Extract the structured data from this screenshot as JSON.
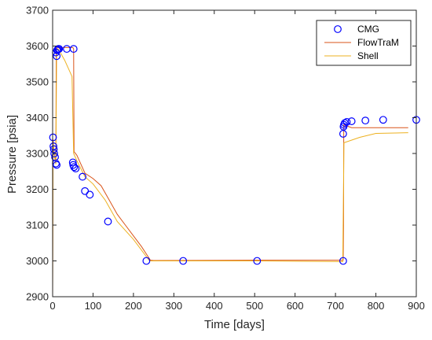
{
  "chart_data": {
    "type": "line",
    "xlabel": "Time [days]",
    "ylabel": "Pressure [psia]",
    "xlim": [
      0,
      900
    ],
    "ylim": [
      2900,
      3700
    ],
    "xticks": [
      0,
      100,
      200,
      300,
      400,
      500,
      600,
      700,
      800,
      900
    ],
    "yticks": [
      2900,
      3000,
      3100,
      3200,
      3300,
      3400,
      3500,
      3600,
      3700
    ],
    "grid": false,
    "legend_position": "top-right",
    "series": [
      {
        "name": "CMG",
        "style": "markers",
        "marker": "circle",
        "color": "#0000ff",
        "points": [
          [
            1,
            3345
          ],
          [
            2,
            3320
          ],
          [
            3,
            3312
          ],
          [
            4,
            3300
          ],
          [
            6,
            3290
          ],
          [
            8,
            3272
          ],
          [
            10,
            3268
          ],
          [
            8,
            3582
          ],
          [
            10,
            3572
          ],
          [
            11,
            3588
          ],
          [
            12,
            3590
          ],
          [
            14,
            3592
          ],
          [
            16,
            3592
          ],
          [
            35,
            3592
          ],
          [
            52,
            3592
          ],
          [
            50,
            3275
          ],
          [
            51,
            3268
          ],
          [
            53,
            3262
          ],
          [
            57,
            3258
          ],
          [
            74,
            3235
          ],
          [
            80,
            3195
          ],
          [
            92,
            3185
          ],
          [
            137,
            3110
          ],
          [
            232,
            3000
          ],
          [
            323,
            3000
          ],
          [
            506,
            3000
          ],
          [
            719,
            3000
          ],
          [
            719,
            3355
          ],
          [
            720,
            3375
          ],
          [
            721,
            3380
          ],
          [
            723,
            3385
          ],
          [
            728,
            3388
          ],
          [
            740,
            3390
          ],
          [
            774,
            3392
          ],
          [
            818,
            3394
          ],
          [
            900,
            3394
          ]
        ]
      },
      {
        "name": "FlowTraM",
        "style": "line",
        "color": "#d95319",
        "points": [
          [
            0,
            2900
          ],
          [
            1,
            3340
          ],
          [
            3,
            3310
          ],
          [
            6,
            3285
          ],
          [
            8,
            3275
          ],
          [
            9,
            3590
          ],
          [
            12,
            3596
          ],
          [
            50,
            3596
          ],
          [
            52,
            3592
          ],
          [
            53,
            3305
          ],
          [
            60,
            3295
          ],
          [
            80,
            3245
          ],
          [
            100,
            3230
          ],
          [
            120,
            3210
          ],
          [
            140,
            3170
          ],
          [
            160,
            3130
          ],
          [
            180,
            3100
          ],
          [
            200,
            3070
          ],
          [
            220,
            3040
          ],
          [
            242,
            3002
          ],
          [
            250,
            3001
          ],
          [
            500,
            3002
          ],
          [
            719,
            3002
          ],
          [
            720,
            3100
          ],
          [
            720.5,
            3380
          ],
          [
            740,
            3372
          ],
          [
            780,
            3372
          ],
          [
            880,
            3372
          ]
        ]
      },
      {
        "name": "Shell",
        "style": "line",
        "color": "#edb120",
        "points": [
          [
            0,
            2900
          ],
          [
            1,
            3330
          ],
          [
            3,
            3305
          ],
          [
            6,
            3280
          ],
          [
            8,
            3270
          ],
          [
            10,
            3590
          ],
          [
            14,
            3592
          ],
          [
            30,
            3560
          ],
          [
            48,
            3515
          ],
          [
            52,
            3300
          ],
          [
            60,
            3280
          ],
          [
            80,
            3235
          ],
          [
            100,
            3215
          ],
          [
            130,
            3170
          ],
          [
            160,
            3110
          ],
          [
            200,
            3060
          ],
          [
            240,
            3000
          ],
          [
            500,
            3000
          ],
          [
            718,
            2998
          ],
          [
            721,
            3330
          ],
          [
            760,
            3345
          ],
          [
            800,
            3356
          ],
          [
            880,
            3358
          ]
        ]
      }
    ]
  }
}
